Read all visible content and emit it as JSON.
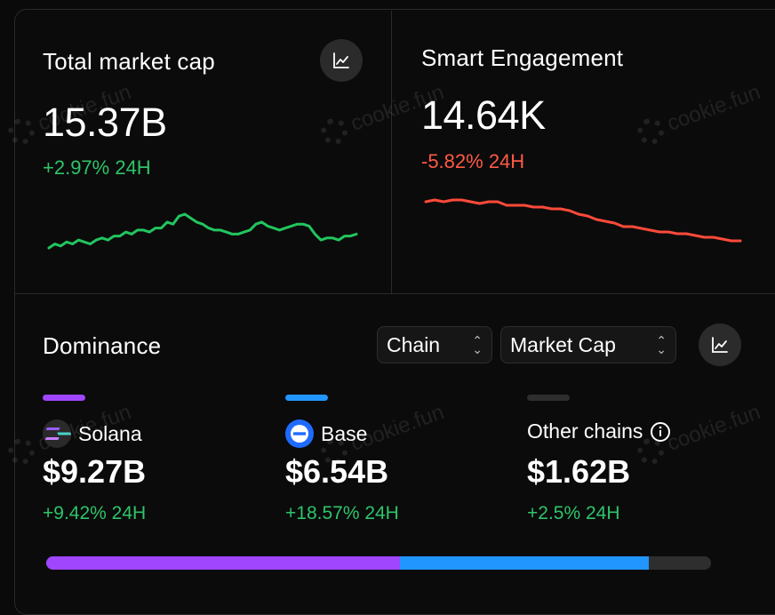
{
  "market_cap": {
    "title": "Total market cap",
    "value": "15.37B",
    "change": "+2.97% 24H",
    "chart_icon": "line-chart-icon",
    "spark_color": "#22c55e",
    "spark": [
      9,
      11,
      10,
      12,
      11,
      13,
      12,
      11,
      13,
      14,
      13,
      15,
      15,
      17,
      16,
      18,
      18,
      17,
      19,
      19,
      22,
      21,
      25,
      26,
      24,
      22,
      21,
      19,
      18,
      18,
      17,
      16,
      16,
      17,
      18,
      21,
      22,
      20,
      19,
      18,
      19,
      20,
      21,
      21,
      20,
      16,
      13,
      14,
      14,
      13,
      15,
      15,
      16
    ]
  },
  "engagement": {
    "title": "Smart Engagement",
    "value": "14.64K",
    "change": "-5.82% 24H",
    "spark_color": "#ff4a3a",
    "spark": [
      58,
      59,
      58,
      59,
      59,
      58,
      57,
      58,
      58,
      56,
      56,
      56,
      55,
      55,
      54,
      54,
      53,
      51,
      50,
      48,
      47,
      46,
      44,
      44,
      43,
      42,
      41,
      41,
      40,
      40,
      39,
      38,
      38,
      37,
      36,
      36
    ]
  },
  "dominance": {
    "title": "Dominance",
    "chain_select": "Chain",
    "metric_select": "Market Cap",
    "chart_icon": "line-chart-icon",
    "chains": [
      {
        "name": "Solana",
        "value": "$9.27B",
        "change": "+9.42% 24H",
        "color": "#a046ff",
        "icon": "solana-icon",
        "share": 53.2
      },
      {
        "name": "Base",
        "value": "$6.54B",
        "change": "+18.57% 24H",
        "color": "#2196ff",
        "icon": "base-icon",
        "share": 37.5
      },
      {
        "name": "Other chains",
        "value": "$1.62B",
        "change": "+2.5% 24H",
        "color": "#2e2e2e",
        "icon": "info-icon",
        "share": 9.3
      }
    ]
  },
  "watermark": "cookie.fun"
}
